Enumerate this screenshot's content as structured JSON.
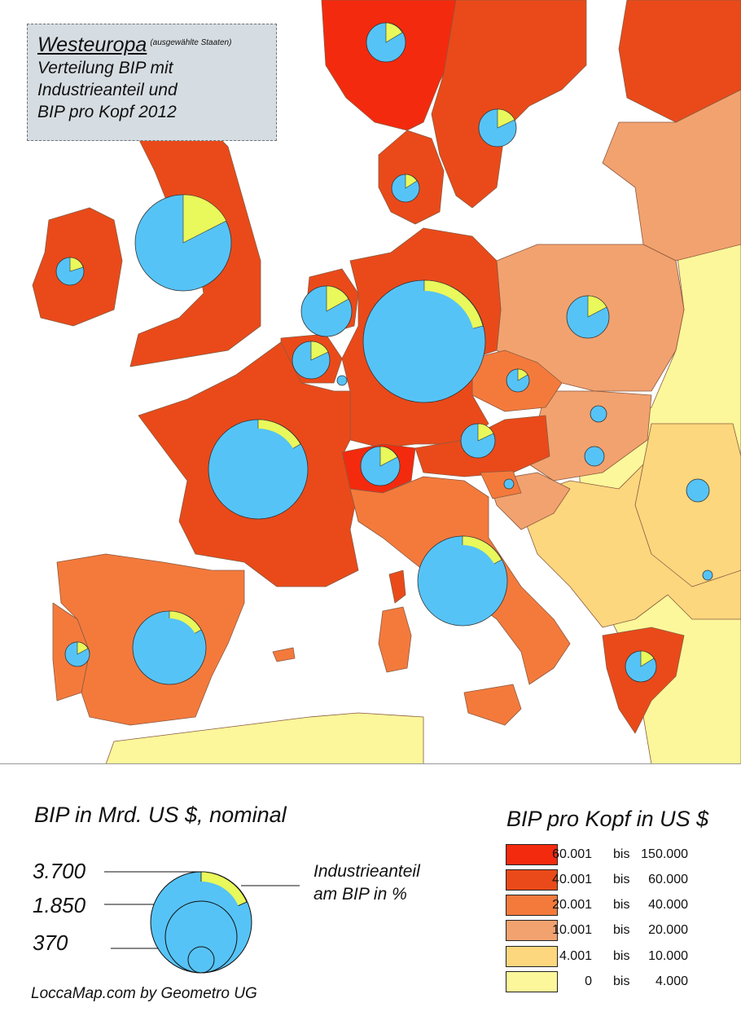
{
  "title": {
    "main": "Westeuropa",
    "qualifier": "(ausgewählte Staaten)",
    "line1": "Verteilung BIP mit",
    "line2": "Industrieanteil und",
    "line3": "BIP pro Kopf 2012"
  },
  "colors": {
    "sea": "#ffffff",
    "border": "#8a5a40",
    "gdp_circle": "#56c3f6",
    "industry_share": "#e9f85a",
    "classes": [
      "#f42a0e",
      "#ea4a1a",
      "#f47a3c",
      "#f2a26f",
      "#fcd77e",
      "#fcf79a"
    ]
  },
  "legend_circles": {
    "title": "BIP in Mrd. US $, nominal",
    "values": [
      "3.700",
      "1.850",
      "370"
    ],
    "industry_label_line1": "Industrieanteil",
    "industry_label_line2": "am BIP in %"
  },
  "legend_classes": {
    "title": "BIP pro Kopf in US $",
    "connector": "bis",
    "rows": [
      {
        "from": "60.001",
        "to": "150.000"
      },
      {
        "from": "40.001",
        "to": "60.000"
      },
      {
        "from": "20.001",
        "to": "40.000"
      },
      {
        "from": "10.001",
        "to": "20.000"
      },
      {
        "from": "4.001",
        "to": "10.000"
      },
      {
        "from": "0",
        "to": "4.000"
      }
    ]
  },
  "credit": "LoccaMap.com by Geometro UG"
}
